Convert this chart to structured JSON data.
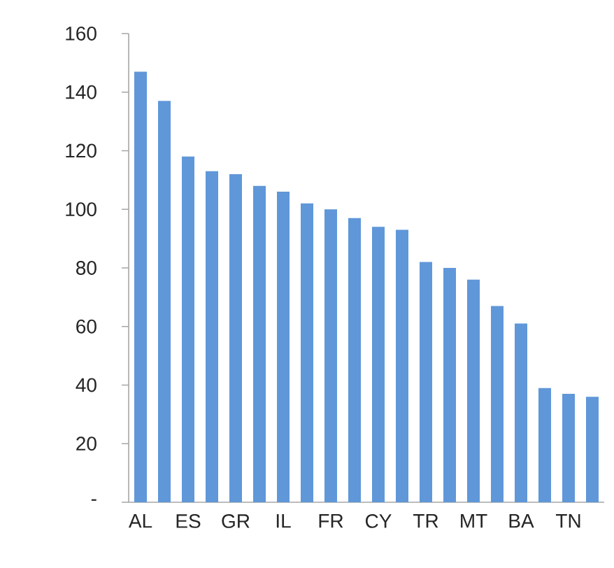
{
  "chart_data": {
    "type": "bar",
    "categories": [
      "AL",
      null,
      "ES",
      null,
      "GR",
      null,
      "IL",
      null,
      "FR",
      null,
      "CY",
      null,
      "TR",
      null,
      "MT",
      null,
      "BA",
      null,
      "TN",
      null
    ],
    "values": [
      147,
      137,
      118,
      113,
      112,
      108,
      106,
      102,
      100,
      97,
      94,
      93,
      82,
      80,
      76,
      67,
      61,
      39,
      37,
      36
    ],
    "color": "#5f97d9",
    "ylim": [
      0,
      160
    ],
    "yticks": [
      {
        "value": 0,
        "label": "-"
      },
      20,
      40,
      60,
      80,
      100,
      120,
      140,
      160
    ],
    "grid": false
  }
}
